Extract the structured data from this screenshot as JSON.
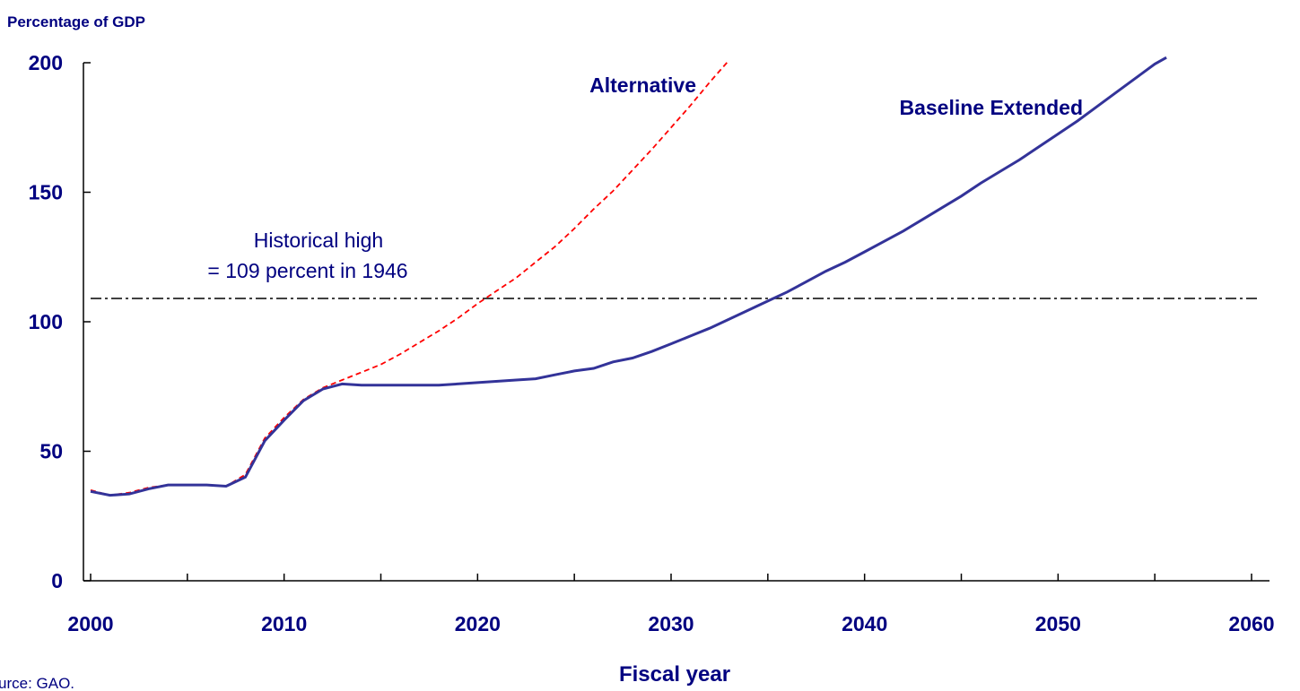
{
  "chart_data": {
    "type": "line",
    "title": "",
    "ylabel": "Percentage of GDP",
    "xlabel": "Fiscal year",
    "source": "urce: GAO.",
    "xlim": [
      2000,
      2060
    ],
    "ylim": [
      0,
      200
    ],
    "x_ticks": [
      "2000",
      "2010",
      "2020",
      "2030",
      "2040",
      "2050",
      "2060"
    ],
    "y_ticks": [
      "0",
      "50",
      "100",
      "150",
      "200"
    ],
    "grid": false,
    "legend": "none",
    "reference_line": {
      "value": 109,
      "label_line1": "Historical high",
      "label_line2": "= 109 percent in 1946",
      "color": "#000000",
      "style": "dash-dot"
    },
    "series": [
      {
        "name": "Alternative",
        "color": "#ff0000",
        "style": "dashed",
        "points": [
          [
            2000,
            35
          ],
          [
            2001,
            33
          ],
          [
            2002,
            34
          ],
          [
            2003,
            36
          ],
          [
            2004,
            37
          ],
          [
            2005,
            37
          ],
          [
            2006,
            37
          ],
          [
            2007,
            36.5
          ],
          [
            2008,
            41
          ],
          [
            2009,
            55
          ],
          [
            2010,
            63
          ],
          [
            2011,
            70
          ],
          [
            2012,
            74.5
          ],
          [
            2013,
            77.5
          ],
          [
            2014,
            80.5
          ],
          [
            2015,
            83.5
          ],
          [
            2016,
            87.5
          ],
          [
            2017,
            92
          ],
          [
            2018,
            96.5
          ],
          [
            2019,
            101.5
          ],
          [
            2020,
            107
          ],
          [
            2021,
            112
          ],
          [
            2022,
            117
          ],
          [
            2023,
            123
          ],
          [
            2024,
            129
          ],
          [
            2025,
            136
          ],
          [
            2026,
            143.5
          ],
          [
            2027,
            150.5
          ],
          [
            2028,
            158.5
          ],
          [
            2029,
            166.5
          ],
          [
            2030,
            175
          ],
          [
            2031,
            183.5
          ],
          [
            2032,
            192.5
          ],
          [
            2033,
            201
          ]
        ]
      },
      {
        "name": "Baseline Extended",
        "color": "#333399",
        "style": "solid",
        "points": [
          [
            2000,
            34.5
          ],
          [
            2001,
            33
          ],
          [
            2002,
            33.5
          ],
          [
            2003,
            35.5
          ],
          [
            2004,
            37
          ],
          [
            2005,
            37
          ],
          [
            2006,
            37
          ],
          [
            2007,
            36.5
          ],
          [
            2008,
            40
          ],
          [
            2009,
            54
          ],
          [
            2010,
            62
          ],
          [
            2011,
            69.5
          ],
          [
            2012,
            74
          ],
          [
            2013,
            76
          ],
          [
            2014,
            75.5
          ],
          [
            2016,
            75.5
          ],
          [
            2018,
            75.5
          ],
          [
            2020,
            76.5
          ],
          [
            2022,
            77.5
          ],
          [
            2023,
            78
          ],
          [
            2024,
            79.5
          ],
          [
            2025,
            81
          ],
          [
            2026,
            82
          ],
          [
            2027,
            84.5
          ],
          [
            2028,
            86
          ],
          [
            2029,
            88.5
          ],
          [
            2030,
            91.5
          ],
          [
            2031,
            94.5
          ],
          [
            2032,
            97.5
          ],
          [
            2033,
            101
          ],
          [
            2034,
            104.5
          ],
          [
            2035,
            108
          ],
          [
            2036,
            111.5
          ],
          [
            2037,
            115.5
          ],
          [
            2038,
            119.5
          ],
          [
            2039,
            123
          ],
          [
            2040,
            127
          ],
          [
            2041,
            131
          ],
          [
            2042,
            135
          ],
          [
            2043,
            139.5
          ],
          [
            2044,
            144
          ],
          [
            2045,
            148.5
          ],
          [
            2046,
            153.5
          ],
          [
            2047,
            158
          ],
          [
            2048,
            162.5
          ],
          [
            2049,
            167.5
          ],
          [
            2050,
            172.5
          ],
          [
            2051,
            177.5
          ],
          [
            2052,
            183
          ],
          [
            2053,
            188.5
          ],
          [
            2054,
            194
          ],
          [
            2055,
            199.5
          ],
          [
            2055.6,
            202
          ]
        ]
      }
    ],
    "labels": {
      "alternative": "Alternative",
      "baseline": "Baseline Extended"
    }
  }
}
